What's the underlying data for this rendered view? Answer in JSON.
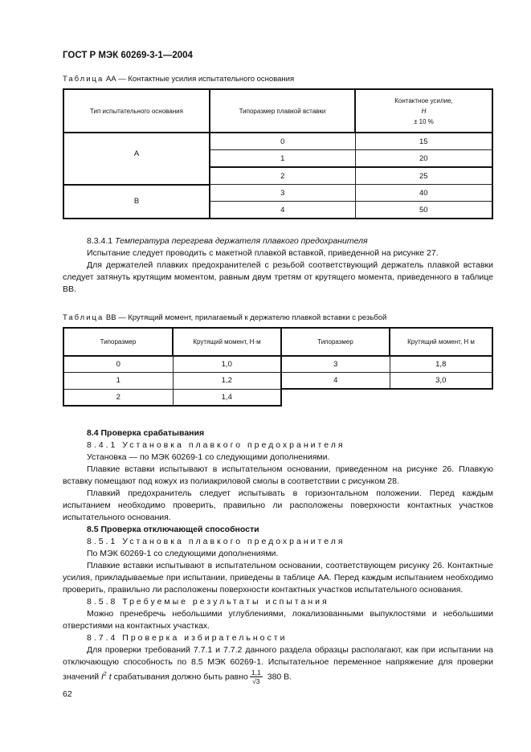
{
  "header": "ГОСТ Р МЭК 60269-3-1—2004",
  "tableAA": {
    "caption_prefix": "Таблица",
    "caption": " АА — Контактные усилия испытательного основания",
    "headers": [
      "Тип испытательного основания",
      "Типоразмер плавкой вставки",
      "Контактное усилие,",
      "Н",
      "± 10 %"
    ],
    "groups": [
      {
        "type": "А",
        "rows": [
          [
            "0",
            "15"
          ],
          [
            "1",
            "20"
          ],
          [
            "2",
            "25"
          ]
        ]
      },
      {
        "type": "В",
        "rows": [
          [
            "3",
            "40"
          ],
          [
            "4",
            "50"
          ]
        ]
      }
    ]
  },
  "s8341": {
    "title_num": "8.3.4.1",
    "title": "Температура перегрева держателя плавкого предохранителя",
    "p1": "Испытание следует проводить с макетной плавкой вставкой, приведенной на рисунке 27.",
    "p2": "Для держателей плавких предохранителей с резьбой соответствующий держатель плавкой вставки следует затянуть крутящим моментом, равным двум третям от крутящего момента, приведенного в таблице ВВ."
  },
  "tableBB": {
    "caption_prefix": "Таблица",
    "caption": " ВВ — Крутящий момент, прилагаемый к держателю плавкой вставки с резьбой",
    "headers": [
      "Типоразмер",
      "Крутящий момент, Н·м",
      "Типоразмер",
      "Крутящий момент, Н м"
    ],
    "rows": [
      [
        "0",
        "1,0",
        "3",
        "1,8"
      ],
      [
        "1",
        "1,2",
        "4",
        "3,0"
      ],
      [
        "2",
        "1,4",
        "",
        ""
      ]
    ]
  },
  "s84": {
    "title": "8.4 Проверка срабатывания",
    "sub": "8.4.1 Установка плавкого предохранителя",
    "p1": "Установка — по МЭК 60269-1 со следующими дополнениями.",
    "p2": "Плавкие вставки испытывают в испытательном основании, приведенном на рисунке 26. Плавкую вставку помещают под кожух из полиакриловой смолы в соответствии с рисунком 28.",
    "p3": "Плавкий предохранитель следует испытывать в горизонтальном положении. Перед каждым испытанием необходимо проверить, правильно ли расположены поверхности контактных участков испытательного основания."
  },
  "s85": {
    "title": "8.5 Проверка отключающей способности",
    "sub": "8.5.1 Установка плавкого предохранителя",
    "p1": "По МЭК 60269-1 со следующими дополнениями.",
    "p2": "Плавкие вставки испытывают в испытательном основании, соответствующем рисунку 26. Контактные усилия, прикладываемые при испытании, приведены в таблице АА. Перед каждым испытанием необходимо проверить, правильно ли расположены поверхности контактных участков испытательного основания.",
    "sub2": "8.5.8 Требуемые результаты испытания",
    "p3": "Можно пренебречь небольшими углублениями, локализованными выпуклостями и небольшими отверстиями на контактных участках."
  },
  "s874": {
    "sub": "8.7.4 Проверка избирательности",
    "p1_a": "Для проверки требований 7.7.1 и 7.7.2 данного раздела образцы располагают, как при испытании на отключающую способность по 8.5 МЭК 60269-1. Испытательное переменное напряжение для проверки значений ",
    "formula_I": "I",
    "formula_sup": "2",
    "formula_t": " t",
    "p1_b": " срабатывания должно быть равно",
    "frac_num": "1,1",
    "frac_den": "√3",
    "p1_c": "380 В."
  },
  "page_number": "62"
}
